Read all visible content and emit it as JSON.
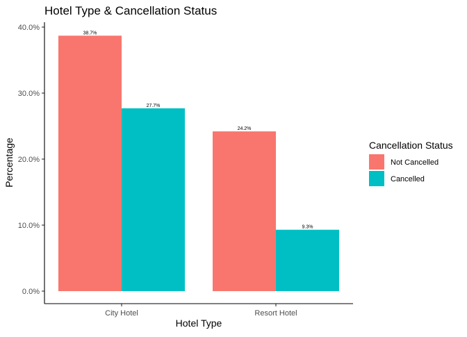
{
  "chart_data": {
    "type": "bar",
    "title": "Hotel Type & Cancellation Status",
    "xlabel": "Hotel Type",
    "ylabel": "Percentage",
    "categories": [
      "City Hotel",
      "Resort Hotel"
    ],
    "series": [
      {
        "name": "Not Cancelled",
        "values": [
          38.7,
          24.2
        ],
        "labels": [
          "38.7%",
          "24.2%"
        ],
        "color": "#F8766D"
      },
      {
        "name": "Cancelled",
        "values": [
          27.7,
          9.3
        ],
        "labels": [
          "27.7%",
          "9.3%"
        ],
        "color": "#00BFC4"
      }
    ],
    "ylim": [
      0,
      40
    ],
    "yticks": [
      0,
      10,
      20,
      30,
      40
    ],
    "ytick_labels": [
      "0.0%",
      "10.0%",
      "20.0%",
      "30.0%",
      "40.0%"
    ],
    "legend": {
      "title": "Cancellation Status",
      "position": "right"
    },
    "grid": false
  }
}
